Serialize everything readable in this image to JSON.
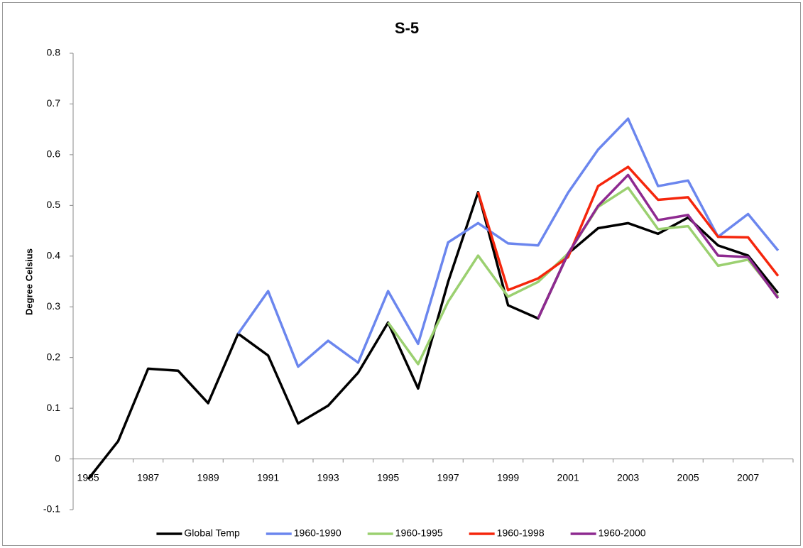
{
  "chart_data": {
    "type": "line",
    "title": "S-5",
    "y_label": "Degree Celsius",
    "categories": [
      "1985",
      null,
      "1987",
      null,
      "1989",
      null,
      "1991",
      null,
      "1993",
      null,
      "1995",
      null,
      "1997",
      null,
      "1999",
      null,
      "2001",
      null,
      "2003",
      null,
      "2005",
      null,
      "2007",
      null
    ],
    "ylim": [
      -0.1,
      0.8
    ],
    "yticks": [
      -0.1,
      0,
      0.1,
      0.2,
      0.3,
      0.4,
      0.5,
      0.6,
      0.7,
      0.8
    ],
    "series": [
      {
        "name": "Global Temp",
        "color": "#000000",
        "values": [
          -0.04,
          0.035,
          0.178,
          0.174,
          0.11,
          0.247,
          0.204,
          0.07,
          0.105,
          0.17,
          0.269,
          0.139,
          0.349,
          0.526,
          0.303,
          0.277,
          0.405,
          0.455,
          0.465,
          0.444,
          0.476,
          0.421,
          0.401,
          0.327
        ]
      },
      {
        "name": "1960-1990",
        "color": "#6b86ee",
        "values": [
          null,
          null,
          null,
          null,
          null,
          0.247,
          0.331,
          0.182,
          0.233,
          0.19,
          0.331,
          0.227,
          0.427,
          0.465,
          0.425,
          0.421,
          0.525,
          0.61,
          0.671,
          0.538,
          0.549,
          0.438,
          0.483,
          0.411
        ]
      },
      {
        "name": "1960-1995",
        "color": "#9bd070",
        "values": [
          null,
          null,
          null,
          null,
          null,
          null,
          null,
          null,
          null,
          null,
          0.269,
          0.187,
          0.31,
          0.401,
          0.32,
          0.349,
          0.405,
          0.497,
          0.535,
          0.453,
          0.459,
          0.381,
          0.393,
          0.32
        ]
      },
      {
        "name": "1960-1998",
        "color": "#f5260c",
        "values": [
          null,
          null,
          null,
          null,
          null,
          null,
          null,
          null,
          null,
          null,
          null,
          null,
          null,
          0.526,
          0.333,
          0.356,
          0.398,
          0.538,
          0.576,
          0.511,
          0.516,
          0.438,
          0.437,
          0.361
        ]
      },
      {
        "name": "1960-2000",
        "color": "#8e2a90",
        "values": [
          null,
          null,
          null,
          null,
          null,
          null,
          null,
          null,
          null,
          null,
          null,
          null,
          null,
          null,
          null,
          0.277,
          0.405,
          0.499,
          0.56,
          0.471,
          0.481,
          0.401,
          0.398,
          0.317
        ]
      }
    ],
    "legend": "bottom"
  }
}
